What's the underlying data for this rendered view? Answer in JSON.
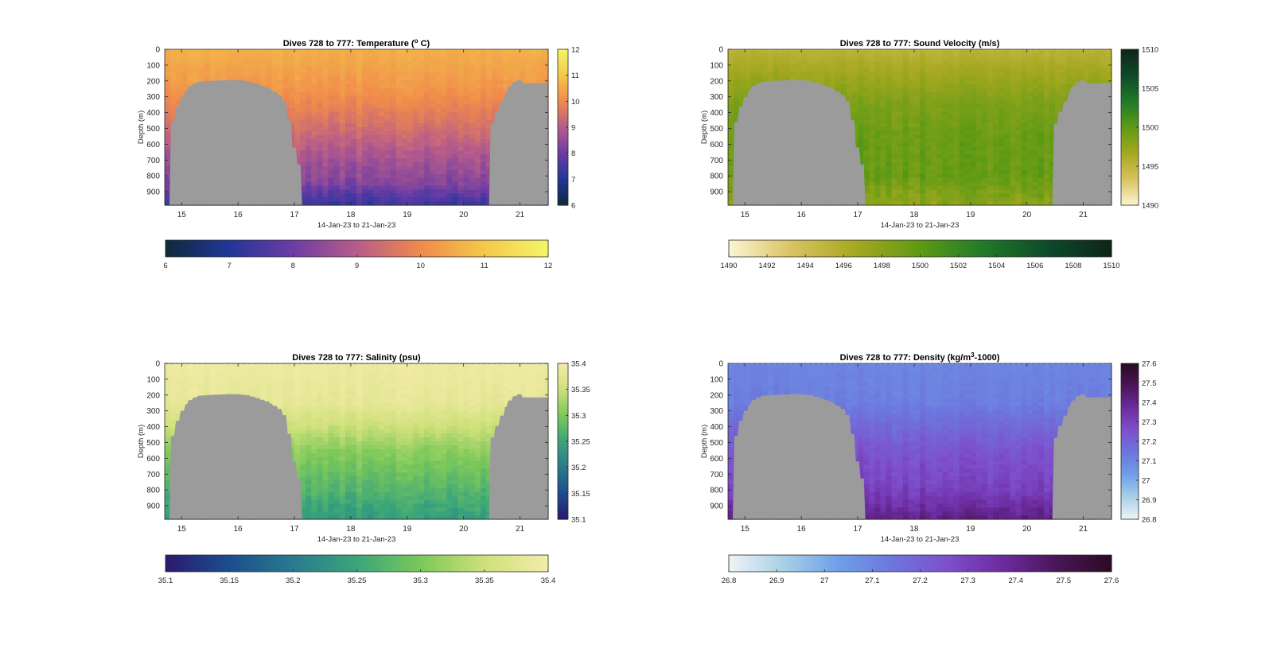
{
  "chart_data": [
    {
      "type": "heatmap",
      "variable": "temperature",
      "title_parts": [
        "Dives 728 to 777: Temperature (",
        "o",
        " C)"
      ],
      "xlabel": "14-Jan-23 to 21-Jan-23",
      "ylabel": "Depth (m)",
      "xlim": [
        14.7,
        21.5
      ],
      "ylim": [
        0,
        985
      ],
      "x_ticks": [
        15,
        16,
        17,
        18,
        19,
        20,
        21
      ],
      "y_ticks": [
        0,
        100,
        200,
        300,
        400,
        500,
        600,
        700,
        800,
        900
      ],
      "clim": [
        6,
        12
      ],
      "colorbar_ticks": [
        6,
        7,
        8,
        9,
        10,
        11,
        12
      ],
      "colorbar_tick_labels": [
        "6",
        "7",
        "8",
        "9",
        "10",
        "11",
        "12"
      ],
      "hbar_ticks": [
        6,
        7,
        8,
        9,
        10,
        11,
        12
      ],
      "hbar_tick_labels": [
        "6",
        "7",
        "8",
        "9",
        "10",
        "11",
        "12"
      ],
      "colormap": [
        "#0d2a3a",
        "#22369a",
        "#6c3ca4",
        "#b85c8a",
        "#f08a4b",
        "#f5c84a",
        "#f5f56a"
      ],
      "profile": {
        "depths": [
          0,
          250,
          450,
          650,
          850,
          985
        ],
        "values": [
          10.6,
          10.2,
          9.6,
          8.9,
          8.3,
          7.3
        ]
      },
      "seafloor_color": "#9b9b9b"
    },
    {
      "type": "heatmap",
      "variable": "sound_velocity",
      "title_parts": [
        "Dives 728 to 777: Sound Velocity (m/s)"
      ],
      "xlabel": "14-Jan-23 to 21-Jan-23",
      "ylabel": "Depth (m)",
      "xlim": [
        14.7,
        21.5
      ],
      "ylim": [
        0,
        985
      ],
      "x_ticks": [
        15,
        16,
        17,
        18,
        19,
        20,
        21
      ],
      "y_ticks": [
        0,
        100,
        200,
        300,
        400,
        500,
        600,
        700,
        800,
        900
      ],
      "clim": [
        1490,
        1510
      ],
      "colorbar_ticks": [
        1490,
        1495,
        1500,
        1505,
        1510
      ],
      "colorbar_tick_labels": [
        "1490",
        "1495",
        "1500",
        "1505",
        "1510"
      ],
      "hbar_ticks": [
        1490,
        1492,
        1494,
        1496,
        1498,
        1500,
        1502,
        1504,
        1506,
        1508,
        1510
      ],
      "hbar_tick_labels": [
        "1490",
        "1492",
        "1494",
        "1496",
        "1498",
        "1500",
        "1502",
        "1504",
        "1506",
        "1508",
        "1510"
      ],
      "colormap": [
        "#fbf6d2",
        "#d9c260",
        "#a5a81f",
        "#5e9a14",
        "#1f7a28",
        "#0e4a2a",
        "#0f2418"
      ],
      "profile": {
        "depths": [
          0,
          150,
          350,
          550,
          800,
          985
        ],
        "values": [
          1495.3,
          1496.8,
          1498.6,
          1499.4,
          1499.6,
          1497.8
        ]
      },
      "seafloor_color": "#9b9b9b"
    },
    {
      "type": "heatmap",
      "variable": "salinity",
      "title_parts": [
        "Dives 728 to 777: Salinity (psu)"
      ],
      "xlabel": "14-Jan-23 to 21-Jan-23",
      "ylabel": "Depth (m)",
      "xlim": [
        14.7,
        21.5
      ],
      "ylim": [
        0,
        985
      ],
      "x_ticks": [
        15,
        16,
        17,
        18,
        19,
        20,
        21
      ],
      "y_ticks": [
        0,
        100,
        200,
        300,
        400,
        500,
        600,
        700,
        800,
        900
      ],
      "clim": [
        35.1,
        35.4
      ],
      "colorbar_ticks": [
        35.1,
        35.15,
        35.2,
        35.25,
        35.3,
        35.35,
        35.4
      ],
      "colorbar_tick_labels": [
        "35.1",
        "35.15",
        "35.2",
        "35.25",
        "35.3",
        "35.35",
        "35.4"
      ],
      "hbar_ticks": [
        35.1,
        35.15,
        35.2,
        35.25,
        35.3,
        35.35,
        35.4
      ],
      "hbar_tick_labels": [
        "35.1",
        "35.15",
        "35.2",
        "35.25",
        "35.3",
        "35.35",
        "35.4"
      ],
      "colormap": [
        "#2a1a6e",
        "#1b4e8c",
        "#2a7a8e",
        "#3aa57a",
        "#7cc85a",
        "#cfe07a",
        "#f5ecaa"
      ],
      "profile": {
        "depths": [
          0,
          250,
          400,
          550,
          750,
          985
        ],
        "values": [
          35.39,
          35.38,
          35.35,
          35.31,
          35.28,
          35.24
        ]
      },
      "seafloor_color": "#9b9b9b"
    },
    {
      "type": "heatmap",
      "variable": "density",
      "title_parts": [
        "Dives 728 to 777: Density (kg/m",
        "3",
        "-1000)"
      ],
      "xlabel": "14-Jan-23 to 21-Jan-23",
      "ylabel": "Depth (m)",
      "xlim": [
        14.7,
        21.5
      ],
      "ylim": [
        0,
        985
      ],
      "x_ticks": [
        15,
        16,
        17,
        18,
        19,
        20,
        21
      ],
      "y_ticks": [
        0,
        100,
        200,
        300,
        400,
        500,
        600,
        700,
        800,
        900
      ],
      "clim": [
        26.8,
        27.6
      ],
      "colorbar_ticks": [
        26.8,
        26.9,
        27.0,
        27.1,
        27.2,
        27.3,
        27.4,
        27.5,
        27.6
      ],
      "colorbar_tick_labels": [
        "26.8",
        "26.9",
        "27",
        "27.1",
        "27.2",
        "27.3",
        "27.4",
        "27.5",
        "27.6"
      ],
      "hbar_ticks": [
        26.8,
        26.9,
        27.0,
        27.1,
        27.2,
        27.3,
        27.4,
        27.5,
        27.6
      ],
      "hbar_tick_labels": [
        "26.8",
        "26.9",
        "27",
        "27.1",
        "27.2",
        "27.3",
        "27.4",
        "27.5",
        "27.6"
      ],
      "colormap": [
        "#eef4f5",
        "#a9d0e6",
        "#6f9fe8",
        "#6c76dc",
        "#7e4fcc",
        "#6d2ba0",
        "#4a1656",
        "#2b0b22"
      ],
      "profile": {
        "depths": [
          0,
          250,
          400,
          550,
          800,
          985
        ],
        "values": [
          27.1,
          27.12,
          27.18,
          27.24,
          27.3,
          27.42
        ]
      },
      "seafloor_color": "#9b9b9b"
    }
  ]
}
